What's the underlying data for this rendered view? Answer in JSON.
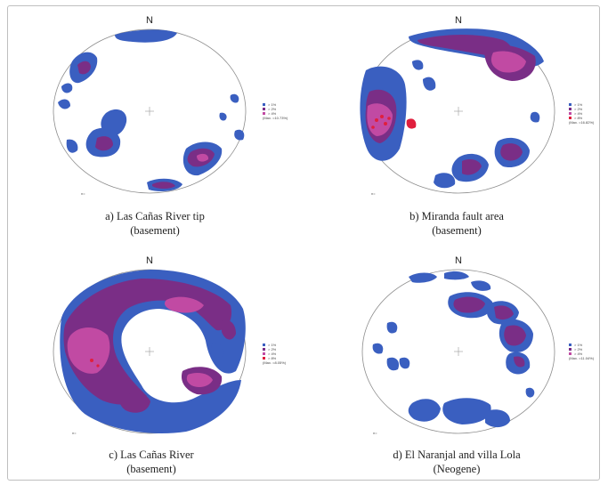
{
  "north_label": "N",
  "colors": {
    "blue": "#3a5fc0",
    "purple": "#7a2e86",
    "magenta": "#c14aa3",
    "red": "#e01f3d",
    "outline": "#8c8c8c"
  },
  "panels": [
    {
      "id": "a",
      "caption_line1": "a) Las Cañas River tip",
      "caption_line2": "(basement)",
      "n_label": "n=",
      "legend": [
        "> 1%",
        "> 2%",
        "> 4%",
        "(Max. =10.73%)"
      ]
    },
    {
      "id": "b",
      "caption_line1": "b) Miranda fault area",
      "caption_line2": "(basement)",
      "n_label": "n=",
      "legend": [
        "> 1%",
        "> 2%",
        "> 4%",
        "> 8%",
        "(Max. =16.82%)"
      ]
    },
    {
      "id": "c",
      "caption_line1": "c) Las Cañas River",
      "caption_line2": "(basement)",
      "n_label": "n=",
      "legend": [
        "> 1%",
        "> 2%",
        "> 4%",
        "> 8%",
        "(Max. =8.05%)"
      ]
    },
    {
      "id": "d",
      "caption_line1": "d) El Naranjal and villa Lola",
      "caption_line2": "(Neogene)",
      "n_label": "n=",
      "legend": [
        "> 1%",
        "> 2%",
        "> 4%",
        "(Max. =11.04%)"
      ]
    }
  ]
}
